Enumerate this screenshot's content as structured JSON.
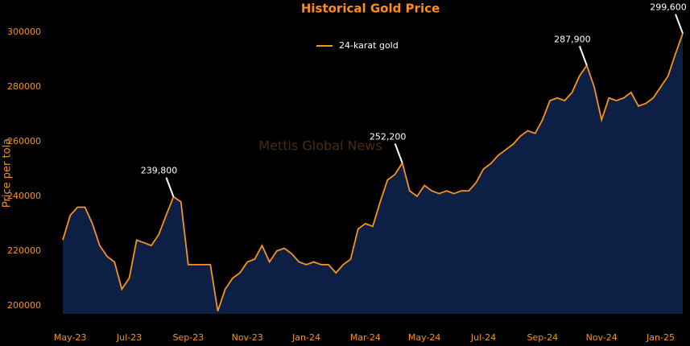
{
  "chart_data": {
    "type": "area-line",
    "title": "Historical Gold Price",
    "ylabel": "Price per tola",
    "watermark": "Mettis Global News",
    "legend": "top-center",
    "categories": [
      null,
      "May-23",
      null,
      null,
      null,
      null,
      null,
      null,
      null,
      "Jul-23",
      null,
      null,
      null,
      null,
      null,
      null,
      null,
      "Sep-23",
      null,
      null,
      null,
      null,
      null,
      null,
      null,
      "Nov-23",
      null,
      null,
      null,
      null,
      null,
      null,
      null,
      "Jan-24",
      null,
      null,
      null,
      null,
      null,
      null,
      null,
      "Mar-24",
      null,
      null,
      null,
      null,
      null,
      null,
      null,
      "May-24",
      null,
      null,
      null,
      null,
      null,
      null,
      null,
      "Jul-24",
      null,
      null,
      null,
      null,
      null,
      null,
      null,
      "Sep-24",
      null,
      null,
      null,
      null,
      null,
      null,
      null,
      "Nov-24",
      null,
      null,
      null,
      null,
      null,
      null,
      null,
      "Jan-25",
      null,
      null,
      null
    ],
    "series": [
      {
        "name": "24-karat gold",
        "color": "#f7931e",
        "fill": "#0d1f45",
        "values": [
          224000,
          233000,
          236000,
          236000,
          230000,
          222000,
          218000,
          216000,
          206000,
          210000,
          224000,
          223000,
          222000,
          226000,
          233000,
          239800,
          238000,
          215000,
          215000,
          215000,
          215000,
          198000,
          206000,
          210000,
          212000,
          216000,
          217000,
          222000,
          216000,
          220000,
          221000,
          219000,
          216000,
          215000,
          216000,
          215000,
          215000,
          212000,
          215000,
          217000,
          228000,
          230000,
          229000,
          238000,
          246000,
          248000,
          252200,
          242000,
          240000,
          244000,
          242000,
          241000,
          242000,
          241000,
          242000,
          242000,
          245000,
          250000,
          252000,
          255000,
          257000,
          259000,
          262000,
          264000,
          263000,
          268000,
          275000,
          276000,
          275000,
          278000,
          284000,
          287900,
          280000,
          268000,
          276000,
          275000,
          276000,
          278000,
          273000,
          274000,
          276000,
          280000,
          284000,
          292000,
          299600
        ],
        "value_labels": [
          null,
          null,
          null,
          null,
          null,
          null,
          null,
          null,
          null,
          null,
          null,
          null,
          null,
          null,
          null,
          "239,800",
          null,
          null,
          null,
          null,
          null,
          null,
          null,
          null,
          null,
          null,
          null,
          null,
          null,
          null,
          null,
          null,
          null,
          null,
          null,
          null,
          null,
          null,
          null,
          null,
          null,
          null,
          null,
          null,
          null,
          null,
          "252,200",
          null,
          null,
          null,
          null,
          null,
          null,
          null,
          null,
          null,
          null,
          null,
          null,
          null,
          null,
          null,
          null,
          null,
          null,
          null,
          null,
          null,
          null,
          null,
          null,
          "287,900",
          null,
          null,
          null,
          null,
          null,
          null,
          null,
          null,
          null,
          null,
          null,
          null,
          "299,600"
        ]
      }
    ],
    "ylim": [
      197000,
      303000
    ],
    "yticks": [
      200000,
      220000,
      240000,
      260000,
      280000,
      300000
    ],
    "grid": false
  }
}
